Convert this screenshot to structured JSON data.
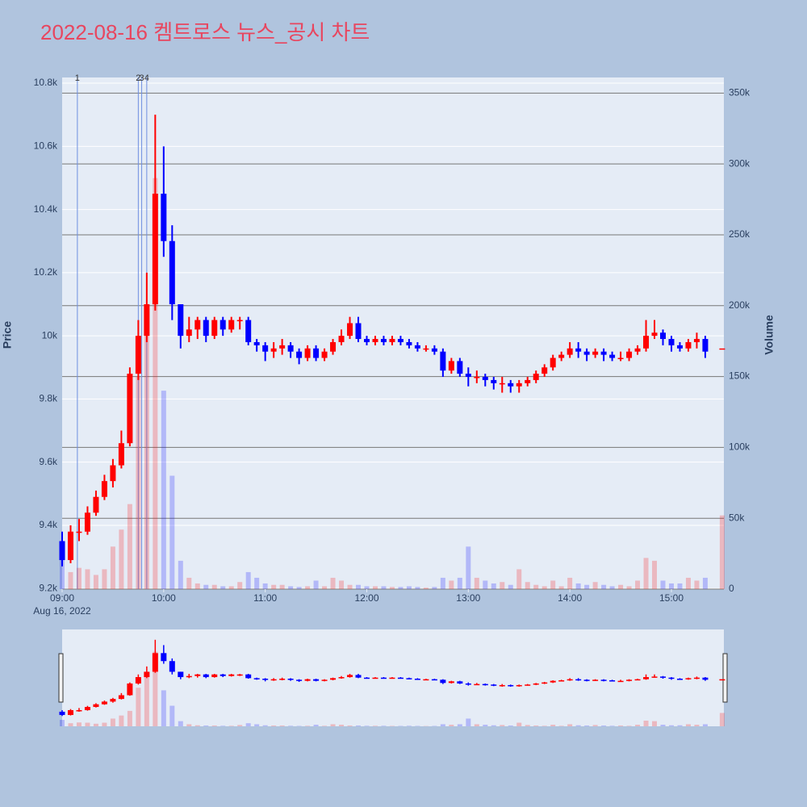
{
  "chart_data": {
    "type": "candlestick",
    "title": "2022-08-16 켐트로스 뉴스_공시 차트",
    "ylabel": "Price",
    "y2label": "Volume",
    "x": [
      "2022-08-16 09:00",
      "2022-08-16 09:05",
      "2022-08-16 09:10",
      "2022-08-16 09:15",
      "2022-08-16 09:20",
      "2022-08-16 09:25",
      "2022-08-16 09:30",
      "2022-08-16 09:35",
      "2022-08-16 09:40",
      "2022-08-16 09:45",
      "2022-08-16 09:50",
      "2022-08-16 09:55",
      "2022-08-16 10:00",
      "2022-08-16 10:05",
      "2022-08-16 10:10",
      "2022-08-16 10:15",
      "2022-08-16 10:20",
      "2022-08-16 10:25",
      "2022-08-16 10:30",
      "2022-08-16 10:35",
      "2022-08-16 10:40",
      "2022-08-16 10:45",
      "2022-08-16 10:50",
      "2022-08-16 10:55",
      "2022-08-16 11:00",
      "2022-08-16 11:05",
      "2022-08-16 11:10",
      "2022-08-16 11:15",
      "2022-08-16 11:20",
      "2022-08-16 11:25",
      "2022-08-16 11:30",
      "2022-08-16 11:35",
      "2022-08-16 11:40",
      "2022-08-16 11:45",
      "2022-08-16 11:50",
      "2022-08-16 11:55",
      "2022-08-16 12:00",
      "2022-08-16 12:05",
      "2022-08-16 12:10",
      "2022-08-16 12:15",
      "2022-08-16 12:20",
      "2022-08-16 12:25",
      "2022-08-16 12:30",
      "2022-08-16 12:35",
      "2022-08-16 12:40",
      "2022-08-16 12:45",
      "2022-08-16 12:50",
      "2022-08-16 12:55",
      "2022-08-16 13:00",
      "2022-08-16 13:05",
      "2022-08-16 13:10",
      "2022-08-16 13:15",
      "2022-08-16 13:20",
      "2022-08-16 13:25",
      "2022-08-16 13:30",
      "2022-08-16 13:35",
      "2022-08-16 13:40",
      "2022-08-16 13:45",
      "2022-08-16 13:50",
      "2022-08-16 13:55",
      "2022-08-16 14:00",
      "2022-08-16 14:05",
      "2022-08-16 14:10",
      "2022-08-16 14:15",
      "2022-08-16 14:20",
      "2022-08-16 14:25",
      "2022-08-16 14:30",
      "2022-08-16 14:35",
      "2022-08-16 14:40",
      "2022-08-16 14:45",
      "2022-08-16 14:50",
      "2022-08-16 14:55",
      "2022-08-16 15:00",
      "2022-08-16 15:05",
      "2022-08-16 15:10",
      "2022-08-16 15:15",
      "2022-08-16 15:20",
      "2022-08-16 15:30"
    ],
    "open": [
      9350,
      9290,
      9380,
      9380,
      9440,
      9490,
      9540,
      9590,
      9660,
      9880,
      10000,
      10100,
      10450,
      10300,
      10100,
      10000,
      10020,
      10050,
      10000,
      10050,
      10020,
      10050,
      10050,
      9980,
      9970,
      9950,
      9960,
      9970,
      9950,
      9930,
      9960,
      9930,
      9950,
      9980,
      10000,
      10040,
      9990,
      9980,
      9990,
      9980,
      9990,
      9980,
      9970,
      9960,
      9960,
      9950,
      9890,
      9920,
      9880,
      9870,
      9870,
      9860,
      9850,
      9850,
      9840,
      9850,
      9860,
      9880,
      9900,
      9930,
      9940,
      9960,
      9950,
      9940,
      9950,
      9940,
      9930,
      9930,
      9950,
      9960,
      10000,
      10010,
      9990,
      9970,
      9960,
      9980,
      9990,
      9960
    ],
    "high": [
      9380,
      9400,
      9420,
      9460,
      9510,
      9560,
      9610,
      9700,
      9900,
      10050,
      10200,
      10700,
      10600,
      10350,
      10100,
      10060,
      10060,
      10060,
      10060,
      10060,
      10060,
      10060,
      10060,
      9990,
      9980,
      9980,
      9990,
      9980,
      9960,
      9970,
      9970,
      9960,
      9990,
      10020,
      10060,
      10060,
      10000,
      10000,
      10000,
      10000,
      10000,
      9990,
      9980,
      9970,
      9970,
      9960,
      9930,
      9930,
      9900,
      9890,
      9880,
      9870,
      9870,
      9860,
      9860,
      9870,
      9890,
      9910,
      9940,
      9950,
      9980,
      9980,
      9960,
      9960,
      9960,
      9950,
      9950,
      9960,
      9970,
      10050,
      10050,
      10020,
      10000,
      9980,
      9990,
      10010,
      10000,
      9960
    ],
    "low": [
      9270,
      9280,
      9350,
      9370,
      9430,
      9480,
      9520,
      9580,
      9650,
      9860,
      9980,
      10080,
      10250,
      10050,
      9960,
      9980,
      9990,
      9980,
      9990,
      10000,
      10010,
      10020,
      9970,
      9950,
      9920,
      9930,
      9940,
      9930,
      9910,
      9920,
      9920,
      9920,
      9940,
      9970,
      9990,
      9980,
      9970,
      9970,
      9970,
      9970,
      9970,
      9960,
      9950,
      9950,
      9940,
      9870,
      9880,
      9870,
      9840,
      9850,
      9840,
      9830,
      9820,
      9820,
      9820,
      9840,
      9850,
      9870,
      9890,
      9920,
      9930,
      9930,
      9920,
      9930,
      9920,
      9920,
      9920,
      9920,
      9940,
      9950,
      9990,
      9970,
      9950,
      9950,
      9950,
      9960,
      9930,
      9960
    ],
    "close": [
      9290,
      9380,
      9380,
      9440,
      9490,
      9540,
      9590,
      9660,
      9880,
      10000,
      10100,
      10450,
      10300,
      10100,
      10000,
      10020,
      10050,
      10000,
      10050,
      10020,
      10050,
      10050,
      9980,
      9970,
      9950,
      9960,
      9970,
      9950,
      9930,
      9960,
      9930,
      9950,
      9980,
      10000,
      10040,
      9990,
      9980,
      9990,
      9980,
      9990,
      9980,
      9970,
      9960,
      9960,
      9950,
      9890,
      9920,
      9880,
      9870,
      9870,
      9860,
      9850,
      9850,
      9840,
      9850,
      9860,
      9880,
      9900,
      9930,
      9940,
      9960,
      9950,
      9940,
      9950,
      9940,
      9930,
      9930,
      9950,
      9960,
      10000,
      10010,
      9990,
      9970,
      9960,
      9980,
      9990,
      9950,
      9960
    ],
    "volume": [
      25000,
      12000,
      15000,
      14000,
      10000,
      14000,
      30000,
      42000,
      60000,
      150000,
      200000,
      290000,
      140000,
      80000,
      20000,
      8000,
      4000,
      3000,
      3000,
      2000,
      2000,
      5000,
      12000,
      8000,
      4000,
      3000,
      3000,
      2000,
      1500,
      2000,
      6000,
      2000,
      8000,
      6000,
      3000,
      3000,
      2000,
      2000,
      2000,
      1500,
      1500,
      2000,
      1500,
      1000,
      1500,
      8000,
      6000,
      8000,
      30000,
      8000,
      6000,
      4000,
      5000,
      3000,
      14000,
      5000,
      3000,
      2000,
      6000,
      2000,
      8000,
      4000,
      3000,
      5000,
      3000,
      2000,
      3000,
      2000,
      6000,
      22000,
      20000,
      6000,
      4000,
      4000,
      8000,
      6000,
      8000,
      52000
    ],
    "increasing_color": "#ff0000",
    "decreasing_color": "#0000ff",
    "xlim": [
      "2022-08-16 09:00",
      "2022-08-16 15:31"
    ],
    "xticks": [
      {
        "value": "2022-08-16 09:00",
        "label": "09:00"
      },
      {
        "value": "2022-08-16 10:00",
        "label": "10:00"
      },
      {
        "value": "2022-08-16 11:00",
        "label": "11:00"
      },
      {
        "value": "2022-08-16 12:00",
        "label": "12:00"
      },
      {
        "value": "2022-08-16 13:00",
        "label": "13:00"
      },
      {
        "value": "2022-08-16 14:00",
        "label": "14:00"
      },
      {
        "value": "2022-08-16 15:00",
        "label": "15:00"
      }
    ],
    "x_date_label": "Aug 16, 2022",
    "ylim": [
      9198,
      10818
    ],
    "yticks": [
      {
        "value": 9200,
        "label": "9.2k"
      },
      {
        "value": 9400,
        "label": "9.4k"
      },
      {
        "value": 9600,
        "label": "9.6k"
      },
      {
        "value": 9800,
        "label": "9.8k"
      },
      {
        "value": 10000,
        "label": "10k"
      },
      {
        "value": 10200,
        "label": "10.2k"
      },
      {
        "value": 10400,
        "label": "10.4k"
      },
      {
        "value": 10600,
        "label": "10.6k"
      },
      {
        "value": 10800,
        "label": "10.8k"
      }
    ],
    "y2lim": [
      0,
      361000
    ],
    "y2ticks": [
      0,
      {
        "value": 50000,
        "label": "50k"
      },
      {
        "value": 100000,
        "label": "100k"
      },
      {
        "value": 150000,
        "label": "150k"
      },
      {
        "value": 200000,
        "label": "200k"
      },
      {
        "value": 250000,
        "label": "250k"
      },
      {
        "value": 300000,
        "label": "300k"
      },
      {
        "value": 350000,
        "label": "350k"
      }
    ],
    "annotations": [
      {
        "x": "2022-08-16 09:09",
        "text": "1"
      },
      {
        "x": "2022-08-16 09:45",
        "text": "2"
      },
      {
        "x": "2022-08-16 09:47",
        "text": "3"
      },
      {
        "x": "2022-08-16 09:50",
        "text": "4"
      }
    ],
    "grid": true,
    "rangeslider": true
  }
}
